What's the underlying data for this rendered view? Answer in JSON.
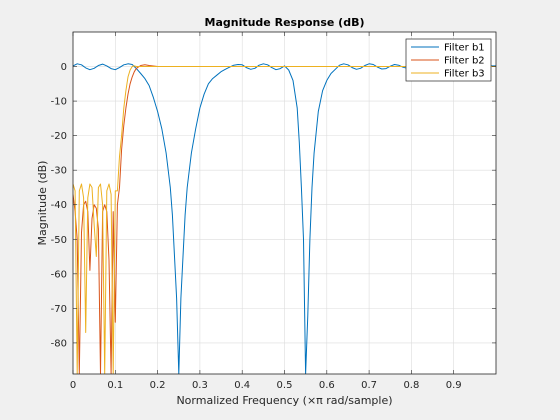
{
  "chart_data": {
    "type": "line",
    "title": "Magnitude Response (dB)",
    "xlabel": "Normalized Frequency (×π rad/sample)",
    "ylabel": "Magnitude (dB)",
    "xlim": [
      0,
      1
    ],
    "ylim": [
      -89,
      10
    ],
    "xticks": [
      0,
      0.1,
      0.2,
      0.3,
      0.4,
      0.5,
      0.6,
      0.7,
      0.8,
      0.9
    ],
    "xtick_labels": [
      "0",
      "0.1",
      "0.2",
      "0.3",
      "0.4",
      "0.5",
      "0.6",
      "0.7",
      "0.8",
      "0.9"
    ],
    "yticks": [
      0,
      -10,
      -20,
      -30,
      -40,
      -50,
      -60,
      -70,
      -80
    ],
    "ytick_labels": [
      "0",
      "-10",
      "-20",
      "-30",
      "-40",
      "-50",
      "-60",
      "-70",
      "-80"
    ],
    "grid": true,
    "legend_position": "top-right",
    "series": [
      {
        "name": "Filter b1",
        "color": "#0072BD",
        "x": [
          0,
          0.01,
          0.02,
          0.03,
          0.04,
          0.05,
          0.06,
          0.07,
          0.08,
          0.09,
          0.1,
          0.11,
          0.12,
          0.13,
          0.14,
          0.15,
          0.16,
          0.17,
          0.18,
          0.19,
          0.2,
          0.21,
          0.22,
          0.23,
          0.235,
          0.24,
          0.245,
          0.25,
          0.255,
          0.26,
          0.265,
          0.27,
          0.28,
          0.29,
          0.3,
          0.31,
          0.32,
          0.33,
          0.34,
          0.35,
          0.36,
          0.37,
          0.38,
          0.39,
          0.4,
          0.41,
          0.42,
          0.43,
          0.44,
          0.45,
          0.46,
          0.47,
          0.48,
          0.49,
          0.5,
          0.51,
          0.52,
          0.53,
          0.535,
          0.54,
          0.545,
          0.55,
          0.555,
          0.56,
          0.565,
          0.57,
          0.58,
          0.59,
          0.6,
          0.61,
          0.62,
          0.63,
          0.64,
          0.65,
          0.66,
          0.67,
          0.68,
          0.69,
          0.7,
          0.71,
          0.72,
          0.73,
          0.74,
          0.75,
          0.76,
          0.77,
          0.78,
          0.79,
          0.8,
          0.82,
          0.84,
          0.86,
          0.88,
          0.9,
          0.92,
          0.94,
          0.96,
          0.98,
          1.0
        ],
        "y": [
          0.2,
          0.8,
          0.5,
          -0.4,
          -0.9,
          -0.5,
          0.3,
          0.7,
          0.2,
          -0.6,
          -0.9,
          -0.3,
          0.5,
          0.8,
          0.6,
          -0.6,
          -2.0,
          -3.5,
          -5.5,
          -9,
          -13,
          -18,
          -25,
          -35,
          -43,
          -55,
          -67,
          -89,
          -67,
          -55,
          -43,
          -35,
          -25,
          -18,
          -12,
          -8,
          -5,
          -3.5,
          -2.5,
          -1.5,
          -0.8,
          -0.2,
          0.4,
          0.6,
          0.5,
          -0.3,
          -0.8,
          -0.5,
          0.4,
          0.8,
          0.5,
          -0.3,
          -0.9,
          -0.6,
          0.2,
          -1,
          -4,
          -12,
          -22,
          -35,
          -50,
          -89,
          -72,
          -50,
          -35,
          -25,
          -13,
          -7,
          -4,
          -2,
          -0.8,
          0.4,
          0.8,
          0.5,
          -0.3,
          -0.8,
          -0.5,
          0.3,
          0.8,
          0.6,
          -0.2,
          -0.7,
          -0.6,
          0.1,
          0.6,
          0.4,
          -0.2,
          -0.5,
          0.3,
          0.5,
          0.1,
          -0.3,
          0.0,
          0.3,
          0.2,
          0.0,
          0.1,
          0.2,
          0.2
        ]
      },
      {
        "name": "Filter b2",
        "color": "#D95319",
        "x": [
          0,
          0.005,
          0.01,
          0.015,
          0.02,
          0.025,
          0.03,
          0.035,
          0.04,
          0.045,
          0.05,
          0.055,
          0.06,
          0.065,
          0.07,
          0.075,
          0.08,
          0.085,
          0.09,
          0.095,
          0.1,
          0.105,
          0.11,
          0.115,
          0.12,
          0.125,
          0.13,
          0.135,
          0.14,
          0.145,
          0.15,
          0.16,
          0.17,
          0.18,
          0.2,
          0.4,
          0.6,
          0.8,
          1.0
        ],
        "y": [
          -37,
          -42,
          -50,
          -89,
          -48,
          -40,
          -39,
          -42,
          -59,
          -44,
          -40,
          -41,
          -47,
          -89,
          -42,
          -40,
          -42,
          -56,
          -89,
          -42,
          -74,
          -40,
          -35,
          -24,
          -17,
          -12,
          -8,
          -5,
          -3,
          -1.5,
          -0.5,
          0.3,
          0.5,
          0.3,
          0,
          0,
          0,
          0,
          0
        ]
      },
      {
        "name": "Filter b3",
        "color": "#EDB120",
        "x": [
          0,
          0.005,
          0.01,
          0.015,
          0.02,
          0.025,
          0.03,
          0.035,
          0.04,
          0.045,
          0.05,
          0.055,
          0.06,
          0.065,
          0.07,
          0.075,
          0.08,
          0.085,
          0.09,
          0.095,
          0.1,
          0.105,
          0.11,
          0.115,
          0.12,
          0.125,
          0.13,
          0.135,
          0.14,
          0.145,
          0.15,
          0.16,
          0.17,
          0.18,
          0.2,
          0.4,
          0.6,
          0.8,
          1.0
        ],
        "y": [
          -34,
          -36,
          -89,
          -36,
          -34,
          -38,
          -77,
          -38,
          -34,
          -35,
          -46,
          -55,
          -35,
          -34,
          -40,
          -89,
          -36,
          -34,
          -37,
          -89,
          -36,
          -36,
          -26,
          -20,
          -12,
          -7,
          -3,
          -1,
          0,
          0.2,
          0,
          0,
          0,
          0,
          0,
          0,
          0,
          0,
          0
        ]
      }
    ]
  }
}
